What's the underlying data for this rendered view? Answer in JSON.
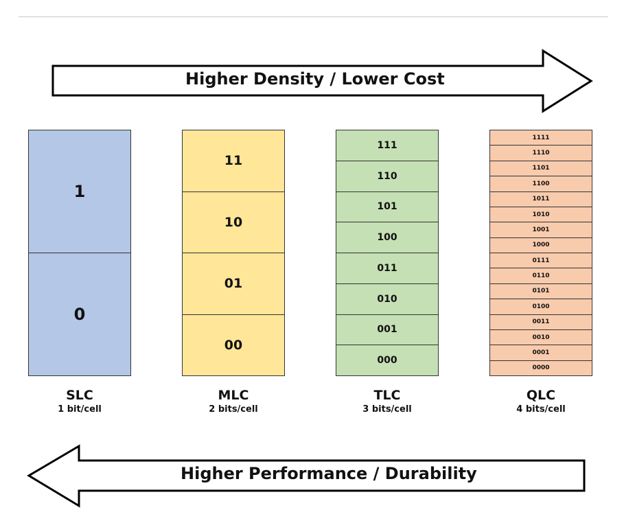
{
  "arrows": {
    "top_label": "Higher Density / Lower Cost",
    "bottom_label": "Higher Performance / Durability"
  },
  "columns": [
    {
      "name": "SLC",
      "bits": "1 bit/cell",
      "color": "#b4c7e7",
      "cells": [
        "1",
        "0"
      ]
    },
    {
      "name": "MLC",
      "bits": "2 bits/cell",
      "color": "#ffe699",
      "cells": [
        "11",
        "10",
        "01",
        "00"
      ]
    },
    {
      "name": "TLC",
      "bits": "3 bits/cell",
      "color": "#c5e0b4",
      "cells": [
        "111",
        "110",
        "101",
        "100",
        "011",
        "010",
        "001",
        "000"
      ]
    },
    {
      "name": "QLC",
      "bits": "4 bits/cell",
      "color": "#f8cbad",
      "cells": [
        "1111",
        "1110",
        "1101",
        "1100",
        "1011",
        "1010",
        "1001",
        "1000",
        "0111",
        "0110",
        "0101",
        "0100",
        "0011",
        "0010",
        "0001",
        "0000"
      ]
    }
  ]
}
